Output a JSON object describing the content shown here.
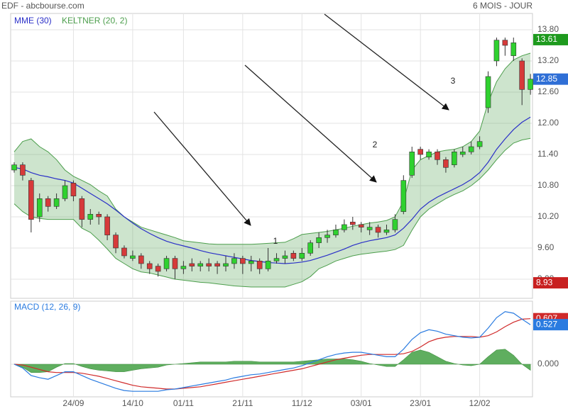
{
  "chart_data": [
    {
      "type": "candlestick",
      "title": "EDF - abcbourse.com",
      "subtitle": "6 MOIS - JOUR",
      "categories": [
        null,
        null,
        null,
        null,
        null,
        null,
        null,
        "24/09",
        null,
        null,
        null,
        null,
        null,
        null,
        "14/10",
        null,
        null,
        null,
        null,
        null,
        "01/11",
        null,
        null,
        null,
        null,
        null,
        null,
        "21/11",
        null,
        null,
        null,
        null,
        null,
        null,
        "11/12",
        null,
        null,
        null,
        null,
        null,
        null,
        "03/01",
        null,
        null,
        null,
        null,
        null,
        null,
        "23/01",
        null,
        null,
        null,
        null,
        null,
        null,
        "12/02",
        null,
        null,
        null,
        null,
        null,
        null
      ],
      "open": [
        11.1,
        11.2,
        10.9,
        10.2,
        10.55,
        10.4,
        10.55,
        10.85,
        10.55,
        10.15,
        10.25,
        10.2,
        9.85,
        9.6,
        9.4,
        9.45,
        9.3,
        9.25,
        9.2,
        9.4,
        9.2,
        9.3,
        9.25,
        9.3,
        9.3,
        9.25,
        9.3,
        9.4,
        9.3,
        9.35,
        9.2,
        9.35,
        9.4,
        9.5,
        9.4,
        9.5,
        9.7,
        9.8,
        9.85,
        9.95,
        10.1,
        10.05,
        9.95,
        10.0,
        9.9,
        9.95,
        10.3,
        11.0,
        11.5,
        11.35,
        11.45,
        11.3,
        11.2,
        11.4,
        11.45,
        11.55,
        12.3,
        13.2,
        13.6,
        13.3,
        13.2,
        12.65
      ],
      "high": [
        11.25,
        11.25,
        10.95,
        10.65,
        10.6,
        10.65,
        10.9,
        10.9,
        10.6,
        10.35,
        10.3,
        10.25,
        9.9,
        9.65,
        9.55,
        9.5,
        9.35,
        9.3,
        9.45,
        9.45,
        9.35,
        9.4,
        9.35,
        9.4,
        9.35,
        9.45,
        9.5,
        9.45,
        9.45,
        9.4,
        9.6,
        9.5,
        9.55,
        9.55,
        9.6,
        9.75,
        9.9,
        9.95,
        10.05,
        10.15,
        10.2,
        10.1,
        10.1,
        10.05,
        10.05,
        10.25,
        11.0,
        11.55,
        11.55,
        11.5,
        11.5,
        11.35,
        11.5,
        11.55,
        11.65,
        11.75,
        13.0,
        13.65,
        13.65,
        13.65,
        13.25,
        12.95
      ],
      "low": [
        11.05,
        10.9,
        9.9,
        10.1,
        10.3,
        10.35,
        10.5,
        10.5,
        10.0,
        10.05,
        10.05,
        9.75,
        9.5,
        9.4,
        9.35,
        9.2,
        9.1,
        9.05,
        9.15,
        9.0,
        9.1,
        9.15,
        9.15,
        9.15,
        9.1,
        9.15,
        9.2,
        9.1,
        9.15,
        9.1,
        9.15,
        9.3,
        9.3,
        9.35,
        9.35,
        9.45,
        9.6,
        9.7,
        9.8,
        9.9,
        9.95,
        9.9,
        9.85,
        9.8,
        9.85,
        9.9,
        10.25,
        10.95,
        11.3,
        11.3,
        11.2,
        11.05,
        11.15,
        11.35,
        11.4,
        11.5,
        12.2,
        13.1,
        13.3,
        13.2,
        12.35,
        12.55
      ],
      "close": [
        11.2,
        11.0,
        10.15,
        10.55,
        10.4,
        10.55,
        10.8,
        10.6,
        10.15,
        10.25,
        10.2,
        9.85,
        9.6,
        9.45,
        9.45,
        9.3,
        9.2,
        9.15,
        9.4,
        9.2,
        9.25,
        9.25,
        9.3,
        9.25,
        9.25,
        9.3,
        9.4,
        9.3,
        9.35,
        9.2,
        9.35,
        9.4,
        9.45,
        9.4,
        9.5,
        9.7,
        9.8,
        9.85,
        9.95,
        10.05,
        10.05,
        10.0,
        10.0,
        9.9,
        9.95,
        10.15,
        10.9,
        11.45,
        11.4,
        11.45,
        11.3,
        11.15,
        11.45,
        11.45,
        11.55,
        11.65,
        12.9,
        13.6,
        13.5,
        13.55,
        12.65,
        12.85
      ],
      "up_color": "#2fd12f",
      "down_color": "#d63a3a",
      "series": [
        {
          "name": "MME (30)",
          "color": "#2a2fc8",
          "values": [
            11.15,
            11.12,
            11.05,
            11.0,
            10.97,
            10.93,
            10.9,
            10.85,
            10.75,
            10.65,
            10.55,
            10.45,
            10.33,
            10.2,
            10.08,
            9.97,
            9.88,
            9.8,
            9.73,
            9.68,
            9.64,
            9.6,
            9.55,
            9.51,
            9.48,
            9.45,
            9.42,
            9.39,
            9.36,
            9.34,
            9.32,
            9.31,
            9.3,
            9.31,
            9.33,
            9.36,
            9.41,
            9.46,
            9.52,
            9.58,
            9.65,
            9.7,
            9.74,
            9.77,
            9.8,
            9.85,
            9.98,
            10.15,
            10.35,
            10.48,
            10.58,
            10.66,
            10.74,
            10.82,
            10.92,
            11.05,
            11.25,
            11.5,
            11.7,
            11.88,
            12.02,
            12.12
          ]
        },
        {
          "name": "KELTNER (20, 2)",
          "color": "#4c9e4c",
          "upper": [
            11.45,
            11.65,
            11.7,
            11.55,
            11.45,
            11.3,
            11.1,
            10.98,
            10.9,
            10.82,
            10.7,
            10.6,
            10.35,
            10.2,
            10.1,
            10.0,
            9.95,
            9.9,
            9.85,
            9.8,
            9.74,
            9.72,
            9.7,
            9.68,
            9.67,
            9.67,
            9.67,
            9.67,
            9.67,
            9.68,
            9.69,
            9.7,
            9.71,
            9.78,
            9.86,
            9.88,
            9.9,
            9.92,
            9.95,
            9.98,
            10.02,
            10.05,
            10.08,
            10.1,
            10.13,
            10.2,
            10.5,
            11.1,
            11.3,
            11.38,
            11.45,
            11.48,
            11.5,
            11.55,
            11.65,
            11.85,
            12.4,
            12.8,
            13.05,
            13.22,
            13.3,
            13.35
          ],
          "lower": [
            10.45,
            10.3,
            10.2,
            10.17,
            10.15,
            10.15,
            10.15,
            10.15,
            9.98,
            9.9,
            9.75,
            9.58,
            9.4,
            9.3,
            9.2,
            9.14,
            9.12,
            9.08,
            9.04,
            9.0,
            8.98,
            8.96,
            8.94,
            8.93,
            8.91,
            8.89,
            8.87,
            8.86,
            8.85,
            8.85,
            8.85,
            8.85,
            8.85,
            8.9,
            8.95,
            9.05,
            9.2,
            9.27,
            9.35,
            9.4,
            9.45,
            9.48,
            9.5,
            9.52,
            9.54,
            9.57,
            9.65,
            9.94,
            10.2,
            10.35,
            10.45,
            10.55,
            10.63,
            10.7,
            10.8,
            10.93,
            11.1,
            11.3,
            11.48,
            11.62,
            11.68,
            11.71
          ]
        }
      ],
      "price_labels": [
        {
          "value": 13.61,
          "color": "#1e9a1e"
        },
        {
          "value": 12.85,
          "color": "#2f6fd6"
        },
        {
          "value": 8.93,
          "color": "#c82020"
        }
      ],
      "annotations": [
        "1",
        "2",
        "3"
      ],
      "ylim": [
        8.645,
        14.1
      ],
      "yticks": [
        {
          "value": 13.8,
          "label": "13.80"
        },
        {
          "value": 13.2,
          "label": "13.20"
        },
        {
          "value": 12.6,
          "label": "12.60"
        },
        {
          "value": 12.0,
          "label": "12.00"
        },
        {
          "value": 11.4,
          "label": "11.40"
        },
        {
          "value": 10.8,
          "label": "10.80"
        },
        {
          "value": 10.2,
          "label": "10.20"
        },
        {
          "value": 9.6,
          "label": "9.60"
        },
        {
          "value": 9.0,
          "label": "9.00"
        }
      ],
      "grid": true
    },
    {
      "type": "macd",
      "title": "MACD (12, 26, 9)",
      "macd": {
        "color": "#2a7be0",
        "values": [
          0.0,
          -0.05,
          -0.15,
          -0.18,
          -0.2,
          -0.15,
          -0.1,
          -0.1,
          -0.15,
          -0.2,
          -0.24,
          -0.28,
          -0.32,
          -0.35,
          -0.36,
          -0.36,
          -0.36,
          -0.36,
          -0.34,
          -0.33,
          -0.31,
          -0.29,
          -0.27,
          -0.25,
          -0.23,
          -0.21,
          -0.18,
          -0.16,
          -0.14,
          -0.13,
          -0.11,
          -0.09,
          -0.07,
          -0.05,
          -0.02,
          0.02,
          0.06,
          0.1,
          0.13,
          0.15,
          0.16,
          0.16,
          0.14,
          0.12,
          0.1,
          0.1,
          0.2,
          0.33,
          0.42,
          0.46,
          0.44,
          0.4,
          0.38,
          0.36,
          0.35,
          0.36,
          0.48,
          0.62,
          0.7,
          0.68,
          0.6,
          0.527
        ]
      },
      "signal": {
        "color": "#d02a2a",
        "values": [
          0.0,
          -0.01,
          -0.04,
          -0.07,
          -0.1,
          -0.11,
          -0.11,
          -0.11,
          -0.12,
          -0.14,
          -0.16,
          -0.19,
          -0.22,
          -0.25,
          -0.28,
          -0.3,
          -0.31,
          -0.32,
          -0.33,
          -0.33,
          -0.32,
          -0.31,
          -0.3,
          -0.28,
          -0.26,
          -0.24,
          -0.22,
          -0.2,
          -0.18,
          -0.16,
          -0.14,
          -0.12,
          -0.1,
          -0.08,
          -0.06,
          -0.03,
          0.0,
          0.03,
          0.06,
          0.08,
          0.1,
          0.12,
          0.13,
          0.13,
          0.13,
          0.13,
          0.14,
          0.17,
          0.23,
          0.3,
          0.34,
          0.36,
          0.37,
          0.37,
          0.37,
          0.36,
          0.38,
          0.43,
          0.5,
          0.56,
          0.6,
          0.607
        ]
      },
      "histogram": {
        "color": "#5fae5f",
        "values": [
          0,
          -0.04,
          -0.11,
          -0.11,
          -0.1,
          -0.04,
          0.01,
          0.01,
          -0.03,
          -0.06,
          -0.08,
          -0.09,
          -0.1,
          -0.1,
          -0.08,
          -0.06,
          -0.05,
          -0.04,
          -0.01,
          0,
          0.01,
          0.02,
          0.03,
          0.03,
          0.03,
          0.03,
          0.04,
          0.04,
          0.04,
          0.03,
          0.03,
          0.03,
          0.03,
          0.03,
          0.04,
          0.05,
          0.06,
          0.07,
          0.07,
          0.07,
          0.06,
          0.04,
          0.01,
          -0.01,
          -0.03,
          -0.03,
          0.06,
          0.16,
          0.19,
          0.16,
          0.1,
          0.04,
          0.01,
          -0.01,
          -0.02,
          0,
          0.1,
          0.19,
          0.2,
          0.12,
          0,
          -0.08
        ]
      },
      "ylim": [
        -0.434,
        0.84
      ],
      "yticks": [
        {
          "value": 0,
          "label": "0.000"
        }
      ],
      "grid": true
    }
  ]
}
